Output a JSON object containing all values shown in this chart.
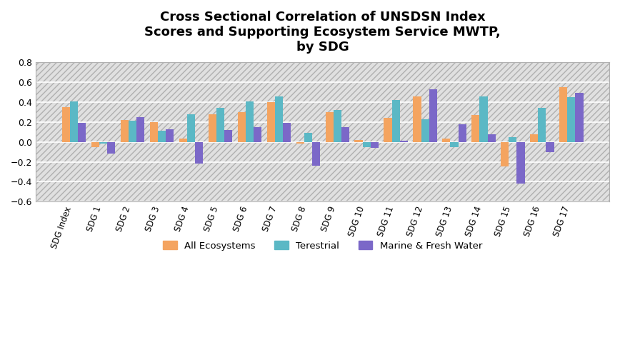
{
  "title": "Cross Sectional Correlation of UNSDSN Index\nScores and Supporting Ecosystem Service MWTP,\nby SDG",
  "categories": [
    "SDG Index",
    "SDG 1",
    "SDG 2",
    "SDG 3",
    "SDG 4",
    "SDG 5",
    "SDG 6",
    "SDG 7",
    "SDG 8",
    "SDG 9",
    "SDG 10",
    "SDG 11",
    "SDG 12",
    "SDG 13",
    "SDG 14",
    "SDG 15",
    "SDG 16",
    "SDG 17"
  ],
  "all_ecosystems": [
    0.35,
    -0.05,
    0.22,
    0.2,
    0.03,
    0.28,
    0.3,
    0.4,
    -0.02,
    0.3,
    0.02,
    0.24,
    0.46,
    0.03,
    0.27,
    -0.25,
    0.08,
    0.55
  ],
  "terrestrial": [
    0.41,
    -0.02,
    0.21,
    0.11,
    0.28,
    0.34,
    0.41,
    0.46,
    0.09,
    0.32,
    -0.05,
    0.42,
    0.23,
    -0.05,
    0.46,
    0.05,
    0.34,
    0.45
  ],
  "marine_fresh": [
    0.19,
    -0.12,
    0.25,
    0.13,
    -0.22,
    0.12,
    0.15,
    0.19,
    -0.24,
    0.15,
    -0.06,
    0.01,
    0.53,
    0.18,
    0.08,
    -0.42,
    -0.1,
    0.49
  ],
  "color_all": "#F4A460",
  "color_terrestrial": "#5BB8C5",
  "color_marine": "#7B68C8",
  "ylim": [
    -0.6,
    0.8
  ],
  "yticks": [
    -0.6,
    -0.4,
    -0.2,
    0.0,
    0.2,
    0.4,
    0.6,
    0.8
  ],
  "legend_labels": [
    "All Ecosystems",
    "Terestrial",
    "Marine & Fresh Water"
  ],
  "hatch_color": "#d0d0d0",
  "grid_color": "#ffffff"
}
